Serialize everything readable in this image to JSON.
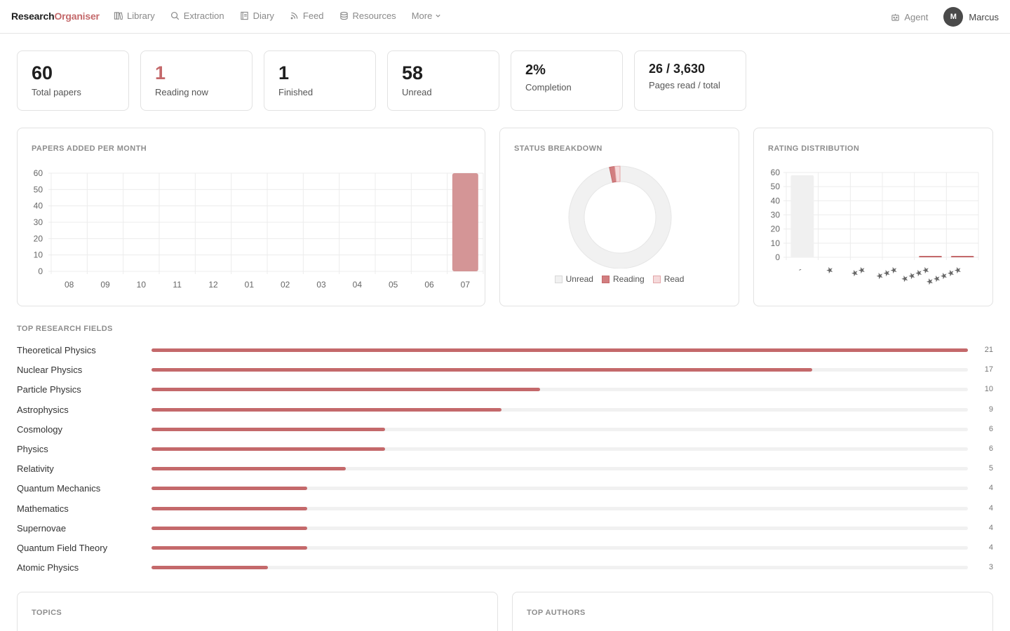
{
  "brand": {
    "part1": "Research",
    "part2": "Organiser"
  },
  "nav": {
    "items": [
      {
        "label": "Library",
        "icon": "library-icon"
      },
      {
        "label": "Extraction",
        "icon": "search-icon"
      },
      {
        "label": "Diary",
        "icon": "diary-icon"
      },
      {
        "label": "Feed",
        "icon": "rss-icon"
      },
      {
        "label": "Resources",
        "icon": "database-icon"
      }
    ],
    "more_label": "More",
    "agent_label": "Agent",
    "user_initial": "M",
    "user_name": "Marcus"
  },
  "stats": [
    {
      "value": "60",
      "label": "Total papers"
    },
    {
      "value": "1",
      "label": "Reading now"
    },
    {
      "value": "1",
      "label": "Finished"
    },
    {
      "value": "58",
      "label": "Unread"
    },
    {
      "value": "2%",
      "label": "Completion"
    },
    {
      "value": "26 / 3,630",
      "label": "Pages read / total"
    }
  ],
  "colors": {
    "accent": "#c4696b",
    "bar": "#d49596",
    "unread": "#f1f1f1",
    "reading": "#d27e80",
    "read": "#f5dadb"
  },
  "chart_data": [
    {
      "type": "bar",
      "title": "PAPERS ADDED PER MONTH",
      "categories": [
        "08",
        "09",
        "10",
        "11",
        "12",
        "01",
        "02",
        "03",
        "04",
        "05",
        "06",
        "07"
      ],
      "values": [
        0,
        0,
        0,
        0,
        0,
        0,
        0,
        0,
        0,
        0,
        0,
        60
      ],
      "ylim": [
        0,
        60
      ],
      "yticks": [
        0,
        10,
        20,
        30,
        40,
        50,
        60
      ],
      "grid": true
    },
    {
      "type": "pie",
      "title": "STATUS BREAKDOWN",
      "categories": [
        "Unread",
        "Reading",
        "Read"
      ],
      "values": [
        58,
        1,
        1
      ],
      "legend": "bottom"
    },
    {
      "type": "bar",
      "title": "RATING DISTRIBUTION",
      "categories": [
        "-",
        "★",
        "★★",
        "★★★",
        "★★★★",
        "★★★★★"
      ],
      "values": [
        58,
        0,
        0,
        0,
        1,
        1
      ],
      "ylim": [
        0,
        60
      ],
      "yticks": [
        0,
        10,
        20,
        30,
        40,
        50,
        60
      ],
      "grid": true
    }
  ],
  "fields": {
    "title": "TOP RESEARCH FIELDS",
    "max": 21,
    "items": [
      {
        "name": "Theoretical Physics",
        "count": 21
      },
      {
        "name": "Nuclear Physics",
        "count": 17
      },
      {
        "name": "Particle Physics",
        "count": 10
      },
      {
        "name": "Astrophysics",
        "count": 9
      },
      {
        "name": "Cosmology",
        "count": 6
      },
      {
        "name": "Physics",
        "count": 6
      },
      {
        "name": "Relativity",
        "count": 5
      },
      {
        "name": "Quantum Mechanics",
        "count": 4
      },
      {
        "name": "Mathematics",
        "count": 4
      },
      {
        "name": "Supernovae",
        "count": 4
      },
      {
        "name": "Quantum Field Theory",
        "count": 4
      },
      {
        "name": "Atomic Physics",
        "count": 3
      }
    ]
  },
  "bottom": {
    "topics_title": "TOPICS",
    "authors_title": "TOP AUTHORS"
  }
}
